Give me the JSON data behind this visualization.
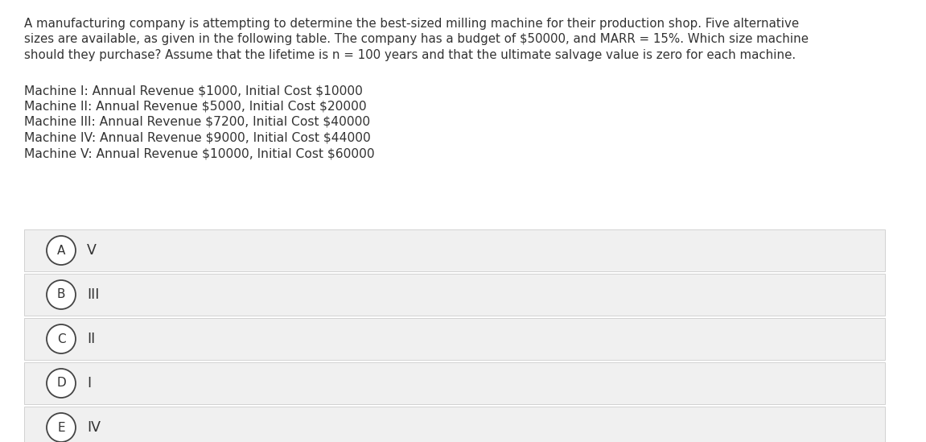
{
  "background_color": "#ffffff",
  "question_text": [
    "A manufacturing company is attempting to determine the best-sized milling machine for their production shop. Five alternative",
    "sizes are available, as given in the following table. The company has a budget of $50000, and MARR = 15%. Which size machine",
    "should they purchase? Assume that the lifetime is n = 100 years and that the ultimate salvage value is zero for each machine."
  ],
  "machine_lines": [
    "Machine I: Annual Revenue $1000, Initial Cost $10000",
    "Machine II: Annual Revenue $5000, Initial Cost $20000",
    "Machine III: Annual Revenue $7200, Initial Cost $40000",
    "Machine IV: Annual Revenue $9000, Initial Cost $44000",
    "Machine V: Annual Revenue $10000, Initial Cost $60000"
  ],
  "options": [
    {
      "letter": "A",
      "text": "V"
    },
    {
      "letter": "B",
      "text": "III"
    },
    {
      "letter": "C",
      "text": "II"
    },
    {
      "letter": "D",
      "text": "I"
    },
    {
      "letter": "E",
      "text": "IV"
    }
  ],
  "option_bg_color": "#f0f0f0",
  "option_border_color": "#cccccc",
  "circle_edge_color": "#444444",
  "circle_face_color": "#ffffff",
  "text_color": "#333333",
  "font_size_question": 10.8,
  "font_size_machine": 11.2,
  "font_size_option": 12.5,
  "font_size_letter": 11.0
}
